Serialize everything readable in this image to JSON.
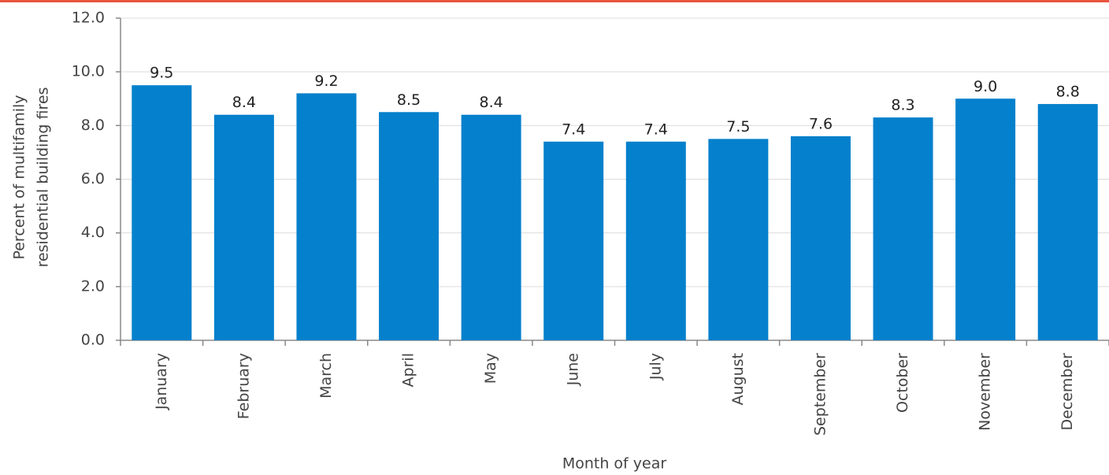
{
  "chart_data": {
    "type": "bar",
    "categories": [
      "January",
      "February",
      "March",
      "April",
      "May",
      "June",
      "July",
      "August",
      "September",
      "October",
      "November",
      "December"
    ],
    "values": [
      9.5,
      8.4,
      9.2,
      8.5,
      8.4,
      7.4,
      7.4,
      7.5,
      7.6,
      8.3,
      9.0,
      8.8
    ],
    "value_labels": [
      "9.5",
      "8.4",
      "9.2",
      "8.5",
      "8.4",
      "7.4",
      "7.4",
      "7.5",
      "7.6",
      "8.3",
      "9.0",
      "8.8"
    ],
    "color": "#0580cc",
    "xlabel": "Month of year",
    "ylabel": [
      "Percent of multifamily",
      "residential building fires"
    ],
    "ylim": [
      0,
      12
    ],
    "yticks": [
      {
        "value": 0,
        "label": "0.0"
      },
      {
        "value": 2,
        "label": "2.0"
      },
      {
        "value": 4,
        "label": "4.0"
      },
      {
        "value": 6,
        "label": "6.0"
      },
      {
        "value": 8,
        "label": "8.0"
      },
      {
        "value": 10,
        "label": "10.0"
      },
      {
        "value": 12,
        "label": "12.0"
      }
    ],
    "grid": true
  }
}
